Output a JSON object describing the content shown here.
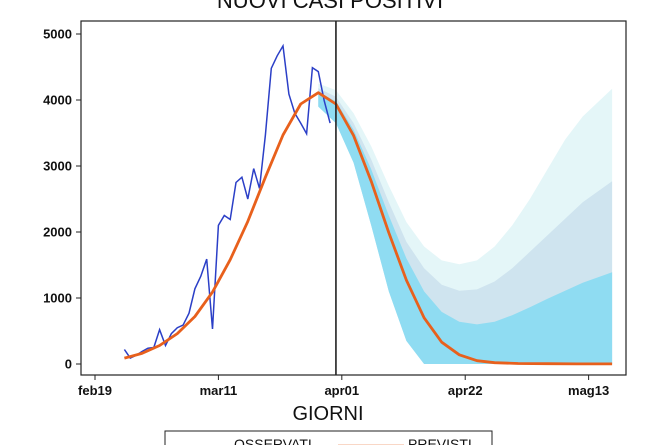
{
  "chart_data": {
    "type": "line",
    "title": "NUOVI CASI POSITIVI",
    "xlabel": "GIORNI",
    "ylabel": "",
    "ylim": [
      0,
      5000
    ],
    "x_domain": [
      "2020-02-19",
      "2020-05-18"
    ],
    "yticks": [
      0,
      1000,
      2000,
      3000,
      4000,
      5000
    ],
    "xticks": [
      {
        "date": "2020-02-19",
        "label": "feb19"
      },
      {
        "date": "2020-03-11",
        "label": "mar11"
      },
      {
        "date": "2020-04-01",
        "label": "apr01"
      },
      {
        "date": "2020-04-22",
        "label": "apr22"
      },
      {
        "date": "2020-05-13",
        "label": "mag13"
      }
    ],
    "vline": "2020-03-31",
    "grid": false,
    "legend": {
      "placement": "bottom",
      "entries": [
        "OSSERVATI",
        "PREVISTI"
      ]
    },
    "colors": {
      "observed": "#2b3fc7",
      "predicted": "#e8601c",
      "band_outer": "#e4f6f8",
      "band_middle": "#cfe4ef",
      "band_inner": "#8fdcf2"
    },
    "series": [
      {
        "name": "OSSERVATI",
        "x": [
          "2020-02-24",
          "2020-02-25",
          "2020-02-26",
          "2020-02-27",
          "2020-02-28",
          "2020-02-29",
          "2020-03-01",
          "2020-03-02",
          "2020-03-03",
          "2020-03-04",
          "2020-03-05",
          "2020-03-06",
          "2020-03-07",
          "2020-03-08",
          "2020-03-09",
          "2020-03-10",
          "2020-03-11",
          "2020-03-12",
          "2020-03-13",
          "2020-03-14",
          "2020-03-15",
          "2020-03-16",
          "2020-03-17",
          "2020-03-18",
          "2020-03-19",
          "2020-03-20",
          "2020-03-21",
          "2020-03-22",
          "2020-03-23",
          "2020-03-24",
          "2020-03-25",
          "2020-03-26",
          "2020-03-27",
          "2020-03-28",
          "2020-03-29",
          "2020-03-30"
        ],
        "values": [
          220,
          90,
          130,
          190,
          240,
          250,
          520,
          280,
          460,
          550,
          590,
          770,
          1140,
          1330,
          1590,
          530,
          2100,
          2250,
          2190,
          2750,
          2830,
          2500,
          2960,
          2660,
          3470,
          4480,
          4670,
          4820,
          4090,
          3800,
          3650,
          3490,
          4490,
          4430,
          3990,
          3650
        ]
      },
      {
        "name": "PREVISTI",
        "x": [
          "2020-02-24",
          "2020-02-27",
          "2020-03-01",
          "2020-03-04",
          "2020-03-07",
          "2020-03-10",
          "2020-03-13",
          "2020-03-16",
          "2020-03-19",
          "2020-03-22",
          "2020-03-25",
          "2020-03-28",
          "2020-03-31",
          "2020-04-03",
          "2020-04-06",
          "2020-04-09",
          "2020-04-12",
          "2020-04-15",
          "2020-04-18",
          "2020-04-21",
          "2020-04-24",
          "2020-04-27",
          "2020-05-01",
          "2020-05-06",
          "2020-05-11",
          "2020-05-17"
        ],
        "values": [
          90,
          160,
          280,
          460,
          720,
          1090,
          1580,
          2160,
          2830,
          3470,
          3940,
          4110,
          3940,
          3460,
          2770,
          1990,
          1270,
          700,
          330,
          140,
          50,
          20,
          8,
          4,
          2,
          1
        ]
      }
    ],
    "bands": {
      "x": [
        "2020-03-28",
        "2020-03-31",
        "2020-04-03",
        "2020-04-06",
        "2020-04-09",
        "2020-04-12",
        "2020-04-15",
        "2020-04-18",
        "2020-04-21",
        "2020-04-24",
        "2020-04-27",
        "2020-04-30",
        "2020-05-03",
        "2020-05-06",
        "2020-05-09",
        "2020-05-12",
        "2020-05-17"
      ],
      "outer_low": [
        3900,
        3650,
        3050,
        2100,
        1100,
        350,
        0,
        0,
        0,
        0,
        0,
        0,
        0,
        0,
        0,
        0,
        0
      ],
      "outer_high": [
        4250,
        4150,
        3800,
        3300,
        2700,
        2150,
        1780,
        1570,
        1510,
        1570,
        1780,
        2100,
        2500,
        2950,
        3400,
        3750,
        4170
      ],
      "middle_high": [
        4180,
        4050,
        3650,
        3100,
        2450,
        1850,
        1450,
        1200,
        1110,
        1130,
        1250,
        1450,
        1700,
        1950,
        2200,
        2450,
        2770
      ],
      "inner_high": [
        4120,
        3980,
        3550,
        2950,
        2250,
        1600,
        1100,
        790,
        640,
        600,
        640,
        740,
        860,
        990,
        1110,
        1230,
        1390
      ]
    }
  }
}
